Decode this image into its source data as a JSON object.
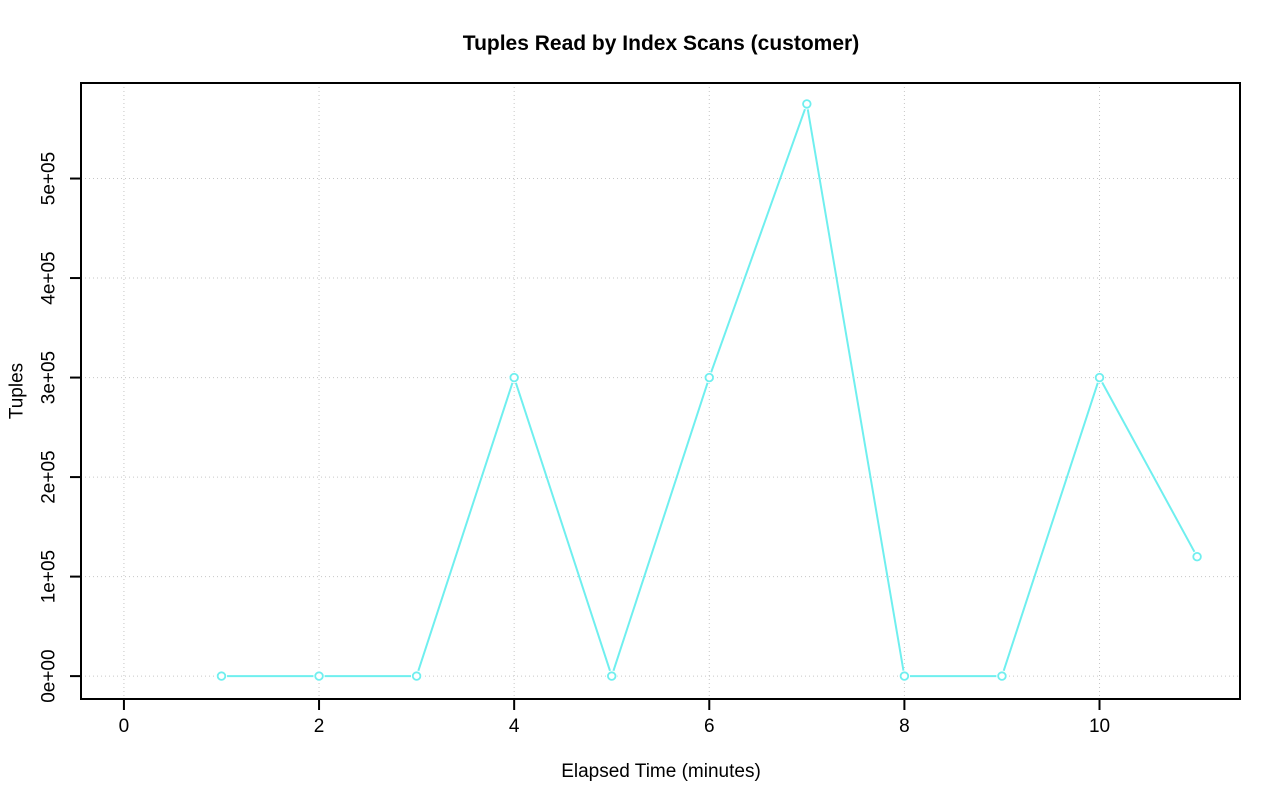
{
  "chart_data": {
    "type": "line",
    "title": "Tuples Read by Index Scans (customer)",
    "xlabel": "Elapsed Time (minutes)",
    "ylabel": "Tuples",
    "x": [
      1,
      2,
      3,
      4,
      5,
      6,
      7,
      8,
      9,
      10,
      11
    ],
    "y": [
      0,
      0,
      0,
      300000,
      0,
      300000,
      575000,
      0,
      0,
      300000,
      120000
    ],
    "x_ticks": [
      0,
      2,
      4,
      6,
      8,
      10
    ],
    "x_tick_labels": [
      "0",
      "2",
      "4",
      "6",
      "8",
      "10"
    ],
    "y_ticks": [
      0,
      100000,
      200000,
      300000,
      400000,
      500000
    ],
    "y_tick_labels": [
      "0e+00",
      "1e+05",
      "2e+05",
      "3e+05",
      "4e+05",
      "5e+05"
    ],
    "xlim": [
      -0.44,
      11.44
    ],
    "ylim": [
      -23000,
      596000
    ],
    "grid": true,
    "grid_style": "dotted",
    "legend_position": "none",
    "marker": "open-circle",
    "line_style": "solid",
    "series_color": "#6FEFEF",
    "grid_color": "#C6C6C6",
    "axis_color": "#000000",
    "text_color": "#000000",
    "background": "#FFFFFF"
  }
}
